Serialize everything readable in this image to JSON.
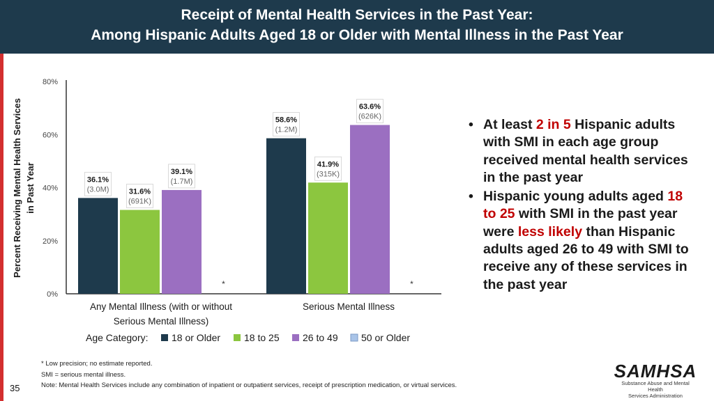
{
  "header": {
    "title_line1": "Receipt of Mental Health Services in the Past Year:",
    "title_line2": "Among Hispanic Adults Aged 18 or Older with Mental Illness in the Past Year"
  },
  "chart_data": {
    "type": "bar",
    "ylabel_line1": "Percent Receiving Mental Health Services",
    "ylabel_line2": "in Past Year",
    "ylim": [
      0,
      80
    ],
    "yticks": [
      "0%",
      "20%",
      "40%",
      "60%",
      "80%"
    ],
    "ytick_values": [
      0,
      20,
      40,
      60,
      80
    ],
    "categories": [
      {
        "label_line1": "Any Mental Illness (with or without",
        "label_line2": "Serious Mental Illness)"
      },
      {
        "label_line1": "Serious Mental Illness",
        "label_line2": ""
      }
    ],
    "series": [
      {
        "name": "18 or Older",
        "color": "#1e3a4c",
        "values": [
          36.1,
          58.6
        ],
        "pct_labels": [
          "36.1%",
          "58.6%"
        ],
        "count_labels": [
          "(3.0M)",
          "(1.2M)"
        ]
      },
      {
        "name": "18 to 25",
        "color": "#8cc63f",
        "values": [
          31.6,
          41.9
        ],
        "pct_labels": [
          "31.6%",
          "41.9%"
        ],
        "count_labels": [
          "(691K)",
          "(315K)"
        ]
      },
      {
        "name": "26 to 49",
        "color": "#9b6fc1",
        "values": [
          39.1,
          63.6
        ],
        "pct_labels": [
          "39.1%",
          "63.6%"
        ],
        "count_labels": [
          "(1.7M)",
          "(626K)"
        ]
      },
      {
        "name": "50 or Older",
        "color": "#a9c4e8",
        "values": [
          null,
          null
        ],
        "pct_labels": [
          "*",
          "*"
        ],
        "count_labels": [
          "",
          ""
        ]
      }
    ],
    "legend_title": "Age Category:",
    "legend_position": "bottom"
  },
  "bullets": [
    {
      "parts": [
        {
          "text": "At least ",
          "hl": false
        },
        {
          "text": "2 in 5",
          "hl": true
        },
        {
          "text": " Hispanic adults with SMI in each age group received mental health services in the past year",
          "hl": false
        }
      ]
    },
    {
      "parts": [
        {
          "text": "Hispanic young adults aged ",
          "hl": false
        },
        {
          "text": "18 to 25",
          "hl": true
        },
        {
          "text": " with SMI in the past year were ",
          "hl": false
        },
        {
          "text": "less likely",
          "hl": true
        },
        {
          "text": " than Hispanic adults aged 26 to 49 with SMI to receive any of these services in the past year",
          "hl": false
        }
      ]
    }
  ],
  "notes": {
    "line1": "* Low precision; no estimate reported.",
    "line2": "SMI = serious mental illness.",
    "line3": "Note: Mental Health Services include any combination of inpatient or outpatient services, receipt of prescription medication, or virtual services."
  },
  "page_number": "35",
  "logo": {
    "name": "SAMHSA",
    "sub1": "Substance Abuse and Mental Health",
    "sub2": "Services Administration"
  }
}
